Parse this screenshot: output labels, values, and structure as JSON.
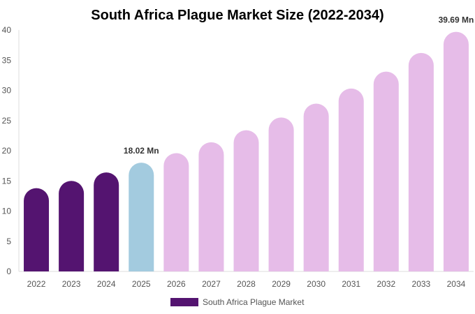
{
  "chart_data": {
    "type": "bar",
    "title": "South Africa Plague Market Size (2022-2034)",
    "categories": [
      "2022",
      "2023",
      "2024",
      "2025",
      "2026",
      "2027",
      "2028",
      "2029",
      "2030",
      "2031",
      "2032",
      "2033",
      "2034"
    ],
    "series": [
      {
        "name": "South Africa Plague Market",
        "values": [
          13.8,
          15.0,
          16.4,
          18.02,
          19.6,
          21.4,
          23.4,
          25.5,
          27.8,
          30.3,
          33.1,
          36.2,
          39.69
        ]
      }
    ],
    "bar_colors": [
      "#541470",
      "#541470",
      "#541470",
      "#a3cbdf",
      "#e6bce8",
      "#e6bce8",
      "#e6bce8",
      "#e6bce8",
      "#e6bce8",
      "#e6bce8",
      "#e6bce8",
      "#e6bce8",
      "#e6bce8"
    ],
    "legend_color": "#541470",
    "data_labels": [
      {
        "category": "2025",
        "text": "18.02 Mn"
      },
      {
        "category": "2034",
        "text": "39.69 Mn"
      }
    ],
    "yticks": [
      "0",
      "5",
      "10",
      "15",
      "20",
      "25",
      "30",
      "35",
      "40"
    ],
    "ylim": [
      0,
      40
    ],
    "xlabel": "",
    "ylabel": "",
    "grid": false,
    "legend_position": "bottom-center",
    "bar_shape": "rounded-top"
  }
}
